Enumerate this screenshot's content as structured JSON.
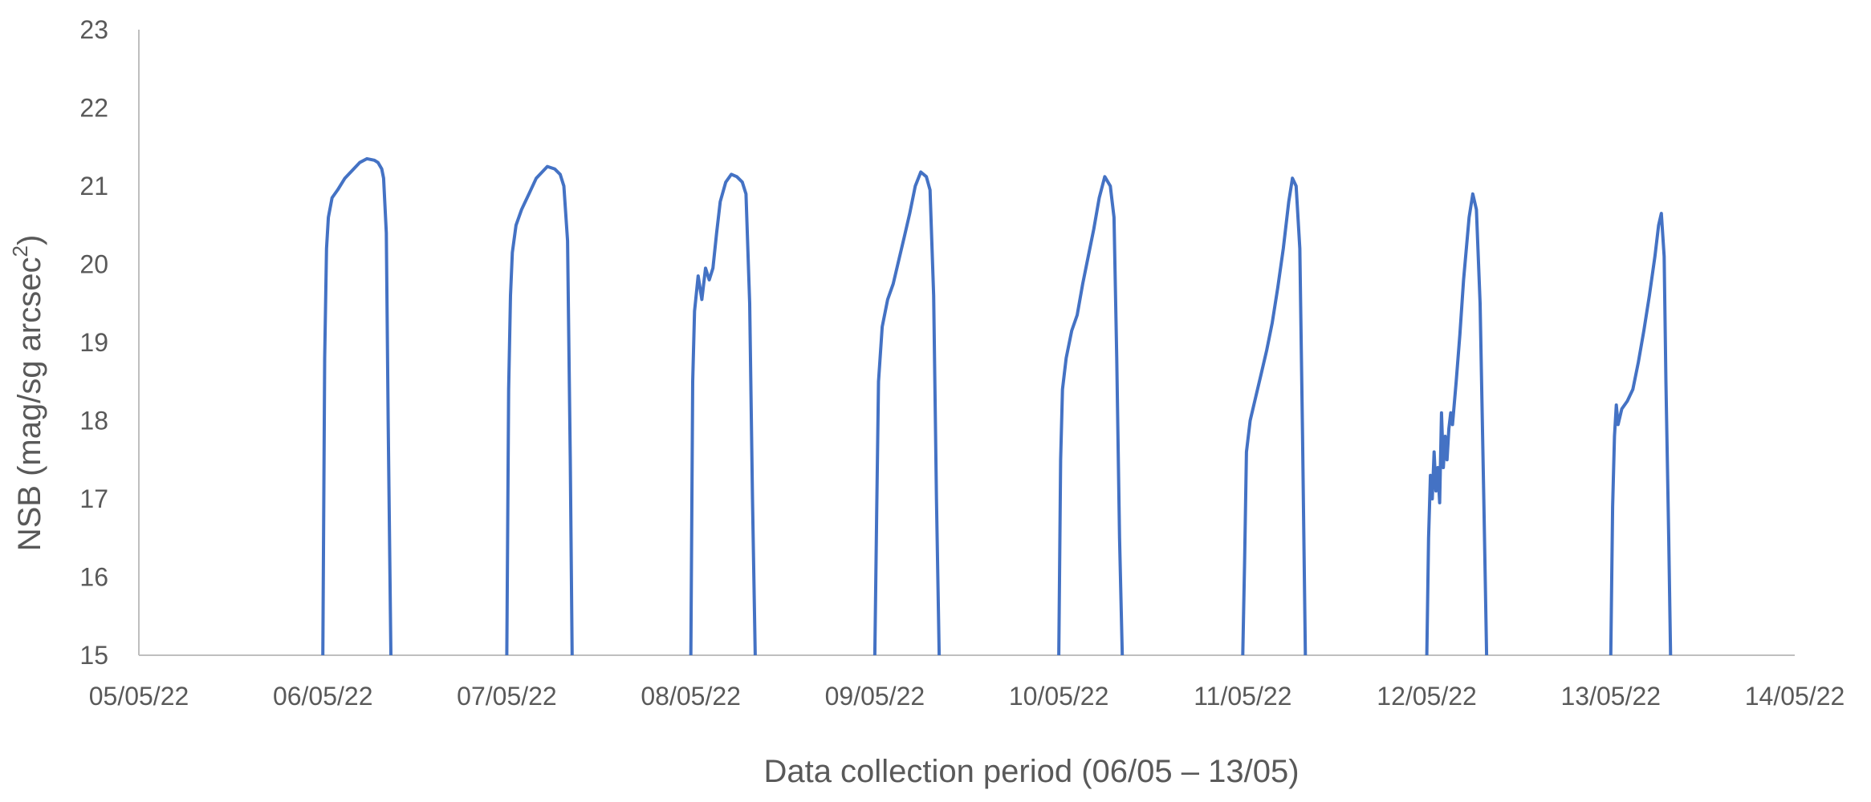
{
  "chart_data": {
    "type": "line",
    "title": "",
    "xlabel": "Data collection period (06/05 – 13/05)",
    "ylabel": "NSB (mag/sg arcsec²)",
    "ylabel_parts": {
      "text": "NSB (mag/sg arcsec",
      "superscript": "2",
      "close": ")"
    },
    "xlim": [
      "05/05/22",
      "14/05/22"
    ],
    "ylim": [
      15,
      23
    ],
    "x_ticks": [
      "05/05/22",
      "06/05/22",
      "07/05/22",
      "08/05/22",
      "09/05/22",
      "10/05/22",
      "11/05/22",
      "12/05/22",
      "13/05/22",
      "14/05/22"
    ],
    "y_ticks": [
      15,
      16,
      17,
      18,
      19,
      20,
      21,
      22,
      23
    ],
    "grid": false,
    "legend": "none",
    "line_color": "#4472c4",
    "series": [
      {
        "values_by_night": [
          [
            [
              0.0,
              15.0
            ],
            [
              0.01,
              18.8
            ],
            [
              0.02,
              20.2
            ],
            [
              0.03,
              20.6
            ],
            [
              0.05,
              20.85
            ],
            [
              0.08,
              20.95
            ],
            [
              0.12,
              21.1
            ],
            [
              0.16,
              21.2
            ],
            [
              0.2,
              21.3
            ],
            [
              0.24,
              21.35
            ],
            [
              0.28,
              21.33
            ],
            [
              0.3,
              21.3
            ],
            [
              0.32,
              21.22
            ],
            [
              0.33,
              21.1
            ],
            [
              0.345,
              20.4
            ],
            [
              0.355,
              18.0
            ],
            [
              0.37,
              15.0
            ]
          ],
          [
            [
              0.0,
              15.0
            ],
            [
              0.01,
              18.4
            ],
            [
              0.02,
              19.6
            ],
            [
              0.03,
              20.15
            ],
            [
              0.05,
              20.5
            ],
            [
              0.08,
              20.7
            ],
            [
              0.12,
              20.9
            ],
            [
              0.16,
              21.1
            ],
            [
              0.2,
              21.2
            ],
            [
              0.22,
              21.25
            ],
            [
              0.26,
              21.22
            ],
            [
              0.29,
              21.15
            ],
            [
              0.31,
              21.0
            ],
            [
              0.33,
              20.3
            ],
            [
              0.345,
              17.5
            ],
            [
              0.355,
              15.0
            ]
          ],
          [
            [
              0.0,
              15.0
            ],
            [
              0.01,
              18.5
            ],
            [
              0.02,
              19.4
            ],
            [
              0.04,
              19.85
            ],
            [
              0.06,
              19.55
            ],
            [
              0.08,
              19.95
            ],
            [
              0.1,
              19.8
            ],
            [
              0.12,
              19.95
            ],
            [
              0.14,
              20.4
            ],
            [
              0.16,
              20.8
            ],
            [
              0.19,
              21.05
            ],
            [
              0.22,
              21.15
            ],
            [
              0.25,
              21.12
            ],
            [
              0.28,
              21.05
            ],
            [
              0.3,
              20.9
            ],
            [
              0.32,
              19.5
            ],
            [
              0.335,
              17.0
            ],
            [
              0.35,
              15.0
            ]
          ],
          [
            [
              0.0,
              15.0
            ],
            [
              0.01,
              16.8
            ],
            [
              0.02,
              18.5
            ],
            [
              0.04,
              19.2
            ],
            [
              0.07,
              19.55
            ],
            [
              0.1,
              19.75
            ],
            [
              0.13,
              20.05
            ],
            [
              0.16,
              20.35
            ],
            [
              0.19,
              20.65
            ],
            [
              0.22,
              21.0
            ],
            [
              0.25,
              21.18
            ],
            [
              0.28,
              21.12
            ],
            [
              0.3,
              20.95
            ],
            [
              0.32,
              19.6
            ],
            [
              0.335,
              17.0
            ],
            [
              0.35,
              15.0
            ]
          ],
          [
            [
              0.0,
              15.0
            ],
            [
              0.01,
              17.5
            ],
            [
              0.02,
              18.4
            ],
            [
              0.04,
              18.8
            ],
            [
              0.07,
              19.15
            ],
            [
              0.1,
              19.35
            ],
            [
              0.13,
              19.75
            ],
            [
              0.16,
              20.1
            ],
            [
              0.19,
              20.45
            ],
            [
              0.22,
              20.85
            ],
            [
              0.25,
              21.12
            ],
            [
              0.28,
              21.0
            ],
            [
              0.3,
              20.6
            ],
            [
              0.315,
              18.8
            ],
            [
              0.33,
              16.5
            ],
            [
              0.345,
              15.0
            ]
          ],
          [
            [
              0.0,
              15.0
            ],
            [
              0.01,
              16.2
            ],
            [
              0.02,
              17.6
            ],
            [
              0.04,
              18.0
            ],
            [
              0.07,
              18.3
            ],
            [
              0.1,
              18.6
            ],
            [
              0.13,
              18.9
            ],
            [
              0.16,
              19.25
            ],
            [
              0.19,
              19.7
            ],
            [
              0.22,
              20.2
            ],
            [
              0.25,
              20.8
            ],
            [
              0.27,
              21.1
            ],
            [
              0.29,
              21.0
            ],
            [
              0.31,
              20.2
            ],
            [
              0.325,
              17.8
            ],
            [
              0.34,
              15.0
            ]
          ],
          [
            [
              0.0,
              15.0
            ],
            [
              0.01,
              16.5
            ],
            [
              0.02,
              17.3
            ],
            [
              0.03,
              17.0
            ],
            [
              0.04,
              17.6
            ],
            [
              0.05,
              17.1
            ],
            [
              0.06,
              17.4
            ],
            [
              0.07,
              16.95
            ],
            [
              0.08,
              18.1
            ],
            [
              0.09,
              17.4
            ],
            [
              0.1,
              17.8
            ],
            [
              0.11,
              17.5
            ],
            [
              0.12,
              17.9
            ],
            [
              0.13,
              18.1
            ],
            [
              0.14,
              17.95
            ],
            [
              0.16,
              18.5
            ],
            [
              0.18,
              19.1
            ],
            [
              0.2,
              19.8
            ],
            [
              0.23,
              20.6
            ],
            [
              0.25,
              20.9
            ],
            [
              0.27,
              20.7
            ],
            [
              0.29,
              19.5
            ],
            [
              0.31,
              17.0
            ],
            [
              0.325,
              15.0
            ]
          ],
          [
            [
              0.0,
              15.0
            ],
            [
              0.01,
              16.9
            ],
            [
              0.02,
              17.8
            ],
            [
              0.03,
              18.2
            ],
            [
              0.04,
              17.95
            ],
            [
              0.06,
              18.15
            ],
            [
              0.09,
              18.25
            ],
            [
              0.12,
              18.4
            ],
            [
              0.15,
              18.75
            ],
            [
              0.18,
              19.15
            ],
            [
              0.21,
              19.6
            ],
            [
              0.24,
              20.1
            ],
            [
              0.26,
              20.5
            ],
            [
              0.275,
              20.65
            ],
            [
              0.29,
              20.1
            ],
            [
              0.3,
              18.5
            ],
            [
              0.315,
              16.5
            ],
            [
              0.325,
              15.0
            ]
          ]
        ]
      }
    ]
  }
}
